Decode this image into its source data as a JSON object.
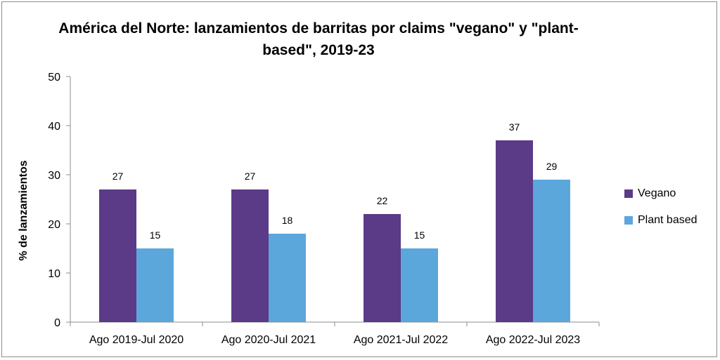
{
  "chart_data": {
    "type": "bar",
    "title": "América del Norte: lanzamientos de barritas por claims \"vegano\" y \"plant-based\", 2019-23",
    "title_lines": [
      "América del Norte: lanzamientos de barritas por claims \"vegano\" y \"plant-",
      "based\", 2019-23"
    ],
    "xlabel": "",
    "ylabel": "% de lanzamientos",
    "ylim": [
      0,
      50
    ],
    "yticks": [
      0,
      10,
      20,
      30,
      40,
      50
    ],
    "categories": [
      "Ago 2019-Jul 2020",
      "Ago 2020-Jul 2021",
      "Ago 2021-Jul 2022",
      "Ago 2022-Jul 2023"
    ],
    "series": [
      {
        "name": "Vegano",
        "color": "#5b3a87",
        "values": [
          27,
          27,
          22,
          37
        ]
      },
      {
        "name": "Plant based",
        "color": "#5ba7dc",
        "values": [
          15,
          18,
          15,
          29
        ]
      }
    ],
    "grid": false,
    "legend_position": "right",
    "data_labels": true
  }
}
